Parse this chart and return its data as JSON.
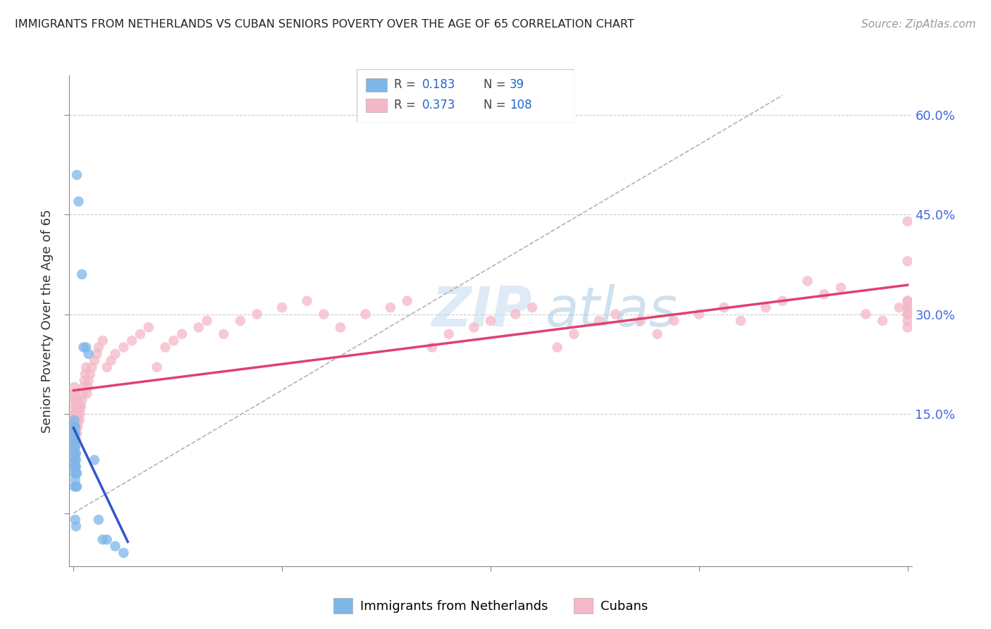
{
  "title": "IMMIGRANTS FROM NETHERLANDS VS CUBAN SENIORS POVERTY OVER THE AGE OF 65 CORRELATION CHART",
  "source": "Source: ZipAtlas.com",
  "ylabel": "Seniors Poverty Over the Age of 65",
  "color_blue": "#7EB6E8",
  "color_pink": "#F4B8C8",
  "trendline_blue": "#3355CC",
  "trendline_pink": "#E04070",
  "trendline_dashed": "#AAAAAA",
  "ytick_vals": [
    0.0,
    0.15,
    0.3,
    0.45,
    0.6
  ],
  "ytick_labels_right": [
    "",
    "15.0%",
    "30.0%",
    "45.0%",
    "60.0%"
  ],
  "xlim": [
    -0.005,
    1.005
  ],
  "ylim": [
    -0.08,
    0.66
  ],
  "grid_color": "#C8C8C8",
  "watermark_color": "#D0E8F8",
  "nl_x": [
    0.001,
    0.001,
    0.001,
    0.001,
    0.001,
    0.001,
    0.001,
    0.001,
    0.001,
    0.001,
    0.002,
    0.002,
    0.002,
    0.002,
    0.002,
    0.002,
    0.002,
    0.002,
    0.002,
    0.003,
    0.003,
    0.003,
    0.003,
    0.003,
    0.003,
    0.004,
    0.004,
    0.004,
    0.006,
    0.01,
    0.012,
    0.015,
    0.018,
    0.025,
    0.03,
    0.035,
    0.04,
    0.05,
    0.06
  ],
  "nl_y": [
    0.04,
    0.06,
    0.07,
    0.08,
    0.09,
    0.1,
    0.11,
    0.12,
    0.13,
    0.14,
    0.05,
    0.07,
    0.08,
    0.09,
    0.1,
    0.11,
    0.12,
    0.13,
    -0.01,
    0.04,
    0.06,
    0.07,
    0.08,
    0.09,
    -0.02,
    0.04,
    0.06,
    0.51,
    0.47,
    0.36,
    0.25,
    0.25,
    0.24,
    0.08,
    -0.01,
    -0.04,
    -0.04,
    -0.05,
    -0.06
  ],
  "cu_x": [
    0.001,
    0.001,
    0.001,
    0.001,
    0.001,
    0.001,
    0.001,
    0.001,
    0.001,
    0.001,
    0.002,
    0.002,
    0.002,
    0.002,
    0.002,
    0.002,
    0.002,
    0.002,
    0.003,
    0.003,
    0.003,
    0.003,
    0.003,
    0.003,
    0.004,
    0.004,
    0.004,
    0.004,
    0.005,
    0.005,
    0.005,
    0.005,
    0.007,
    0.007,
    0.008,
    0.009,
    0.01,
    0.011,
    0.012,
    0.013,
    0.014,
    0.015,
    0.016,
    0.017,
    0.018,
    0.02,
    0.022,
    0.025,
    0.028,
    0.03,
    0.035,
    0.04,
    0.045,
    0.05,
    0.06,
    0.07,
    0.08,
    0.09,
    0.1,
    0.11,
    0.12,
    0.13,
    0.15,
    0.16,
    0.18,
    0.2,
    0.22,
    0.25,
    0.28,
    0.3,
    0.32,
    0.35,
    0.38,
    0.4,
    0.43,
    0.45,
    0.48,
    0.5,
    0.53,
    0.55,
    0.58,
    0.6,
    0.63,
    0.65,
    0.68,
    0.7,
    0.72,
    0.75,
    0.78,
    0.8,
    0.83,
    0.85,
    0.88,
    0.9,
    0.92,
    0.95,
    0.97,
    0.99,
    1.0,
    1.0,
    1.0,
    1.0,
    1.0,
    1.0,
    1.0,
    1.0,
    1.0,
    1.0
  ],
  "cu_y": [
    0.08,
    0.1,
    0.11,
    0.12,
    0.13,
    0.14,
    0.15,
    0.17,
    0.18,
    0.19,
    0.1,
    0.12,
    0.13,
    0.14,
    0.15,
    0.16,
    0.17,
    0.18,
    0.11,
    0.13,
    0.14,
    0.15,
    0.16,
    0.17,
    0.12,
    0.14,
    0.15,
    0.16,
    0.13,
    0.15,
    0.16,
    0.17,
    0.14,
    0.16,
    0.15,
    0.16,
    0.17,
    0.18,
    0.19,
    0.2,
    0.21,
    0.22,
    0.18,
    0.19,
    0.2,
    0.21,
    0.22,
    0.23,
    0.24,
    0.25,
    0.26,
    0.22,
    0.23,
    0.24,
    0.25,
    0.26,
    0.27,
    0.28,
    0.22,
    0.25,
    0.26,
    0.27,
    0.28,
    0.29,
    0.27,
    0.29,
    0.3,
    0.31,
    0.32,
    0.3,
    0.28,
    0.3,
    0.31,
    0.32,
    0.25,
    0.27,
    0.28,
    0.29,
    0.3,
    0.31,
    0.25,
    0.27,
    0.29,
    0.3,
    0.29,
    0.27,
    0.29,
    0.3,
    0.31,
    0.29,
    0.31,
    0.32,
    0.35,
    0.33,
    0.34,
    0.3,
    0.29,
    0.31,
    0.44,
    0.38,
    0.28,
    0.3,
    0.31,
    0.32,
    0.29,
    0.3,
    0.31,
    0.32
  ]
}
